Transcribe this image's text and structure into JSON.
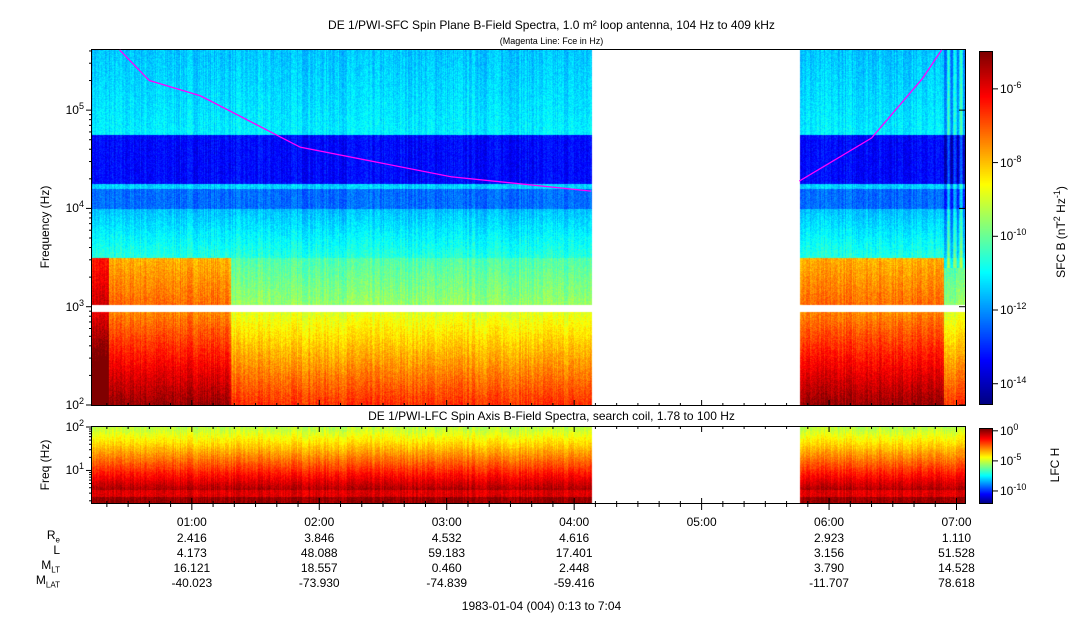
{
  "chart_data": [
    {
      "type": "heatmap",
      "title": "DE 1/PWI-SFC  Spin Plane B-Field Spectra, 1.0 m² loop antenna, 104 Hz to 409 kHz",
      "subtitle": "(Magenta Line: Fce in Hz)",
      "ylabel": "Frequency (Hz)",
      "yscale": "log",
      "ylim": [
        100,
        409000
      ],
      "yticks": [
        {
          "v": 100,
          "label": "10",
          "exp": "2"
        },
        {
          "v": 1000,
          "label": "10",
          "exp": "3"
        },
        {
          "v": 10000,
          "label": "10",
          "exp": "4"
        },
        {
          "v": 100000,
          "label": "10",
          "exp": "5"
        }
      ],
      "xlim": [
        "00:13",
        "07:04"
      ],
      "data_gap": [
        "04:08",
        "05:46"
      ],
      "colorbar": {
        "label": "SFC B (nT",
        "label_sup1": "2",
        "label_mid": " Hz",
        "label_sup2": "-1",
        "label_end": ")",
        "scale": "log",
        "range": [
          -14.55,
          -5.0
        ],
        "ticks": [
          {
            "v": -6,
            "label": "10",
            "exp": "-6"
          },
          {
            "v": -8,
            "label": "10",
            "exp": "-8"
          },
          {
            "v": -10,
            "label": "10",
            "exp": "-10"
          },
          {
            "v": -12,
            "label": "10",
            "exp": "-12"
          },
          {
            "v": -14,
            "label": "10",
            "exp": "-14"
          }
        ],
        "colormap": "jet"
      },
      "fce_line": {
        "color": "#ff00ff",
        "points": [
          [
            "00:26",
            450000
          ],
          [
            "00:40",
            200000
          ],
          [
            "01:04",
            140000
          ],
          [
            "01:51",
            42000
          ],
          [
            "03:02",
            21000
          ],
          [
            "04:08",
            15000
          ],
          [
            "05:46",
            19000
          ],
          [
            "06:20",
            52000
          ],
          [
            "06:44",
            210000
          ],
          [
            "06:53",
            450000
          ]
        ]
      }
    },
    {
      "type": "heatmap",
      "title": "DE 1/PWI-LFC  Spin Axis B-Field Spectra, search coil, 1.78 to 100 Hz",
      "ylabel": "Freq (Hz)",
      "yscale": "log",
      "ylim": [
        1.78,
        100
      ],
      "yticks": [
        {
          "v": 10,
          "label": "10",
          "exp": "1"
        },
        {
          "v": 100,
          "label": "10",
          "exp": "2"
        }
      ],
      "xlim": [
        "00:13",
        "07:04"
      ],
      "data_gap": [
        "04:08",
        "05:46"
      ],
      "colorbar": {
        "label": "LFC H",
        "scale": "log",
        "range": [
          -12,
          0.3
        ],
        "ticks": [
          {
            "v": 0,
            "label": "10",
            "exp": "0"
          },
          {
            "v": -5,
            "label": "10",
            "exp": "-5"
          },
          {
            "v": -10,
            "label": "10",
            "exp": "-10"
          }
        ],
        "colormap": "jet"
      }
    }
  ],
  "xaxis": {
    "ticks": [
      "01:00",
      "02:00",
      "03:00",
      "04:00",
      "05:00",
      "06:00",
      "07:00"
    ],
    "footer": "1983-01-04 (004) 0:13 to 7:04"
  },
  "ephemeris": {
    "rows": [
      {
        "label": "R",
        "sub": "e",
        "values": [
          "2.416",
          "3.846",
          "4.532",
          "4.616",
          "",
          "2.923",
          "1.110"
        ]
      },
      {
        "label": "L",
        "sub": "",
        "values": [
          "4.173",
          "48.088",
          "59.183",
          "17.401",
          "",
          "3.156",
          "51.528"
        ]
      },
      {
        "label": "M",
        "sub": "LT",
        "values": [
          "16.121",
          "18.557",
          "0.460",
          "2.448",
          "",
          "3.790",
          "14.528"
        ]
      },
      {
        "label": "M",
        "sub": "LAT",
        "values": [
          "-40.023",
          "-73.930",
          "-74.839",
          "-59.416",
          "",
          "-11.707",
          "78.618"
        ]
      }
    ]
  }
}
